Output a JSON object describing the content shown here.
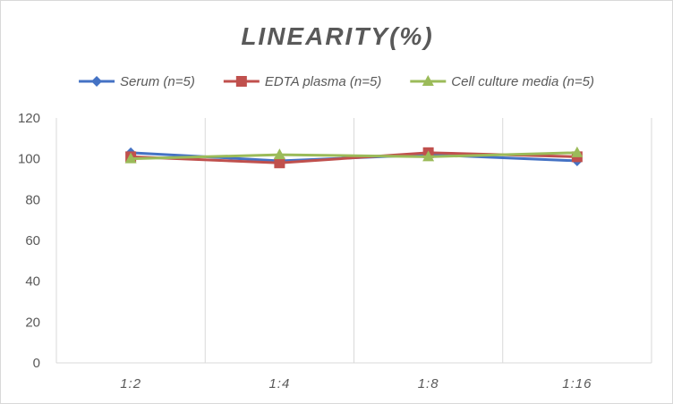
{
  "chart_data": {
    "type": "line",
    "title": "LINEARITY(%)",
    "xlabel": "",
    "ylabel": "",
    "categories": [
      "1:2",
      "1:4",
      "1:8",
      "1:16"
    ],
    "ylim": [
      0,
      120
    ],
    "yticks": [
      0,
      20,
      40,
      60,
      80,
      100,
      120
    ],
    "grid": "vertical",
    "legend": "top",
    "series": [
      {
        "name": "Serum (n=5)",
        "values": [
          103,
          99,
          102,
          99
        ],
        "color": "#4472c4",
        "marker": "diamond"
      },
      {
        "name": "EDTA plasma (n=5)",
        "values": [
          101,
          98,
          103,
          101
        ],
        "color": "#c0504d",
        "marker": "square"
      },
      {
        "name": "Cell culture media (n=5)",
        "values": [
          100,
          102,
          101,
          103
        ],
        "color": "#9bbb59",
        "marker": "triangle"
      }
    ]
  }
}
